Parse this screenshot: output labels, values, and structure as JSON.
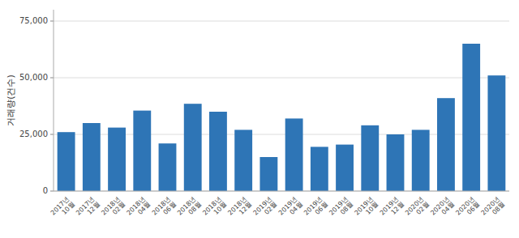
{
  "chart_data": {
    "type": "bar",
    "ylabel": "거래량(건수)",
    "categories": [
      "2017년\n10월",
      "2017년\n12월",
      "2018년\n02월",
      "2018년\n04월",
      "2018년\n06월",
      "2018년\n08월",
      "2018년\n10월",
      "2018년\n12월",
      "2019년\n02월",
      "2019년\n04월",
      "2019년\n06월",
      "2019년\n08월",
      "2019년\n10월",
      "2019년\n12월",
      "2020년\n02월",
      "2020년\n04월",
      "2020년\n06월",
      "2020년\n08월"
    ],
    "values": [
      26000,
      30000,
      28000,
      35500,
      21000,
      38500,
      35000,
      27000,
      15000,
      32000,
      19500,
      20500,
      29000,
      25000,
      27000,
      41000,
      65000,
      51000
    ],
    "color": "#2e75b6",
    "ylim": [
      0,
      80000
    ],
    "yticks": [
      0,
      {
        "value": 25000,
        "label": "25,000"
      },
      {
        "value": 50000,
        "label": "50,000"
      },
      {
        "value": 75000,
        "label": "75,000"
      }
    ],
    "grid": true
  }
}
